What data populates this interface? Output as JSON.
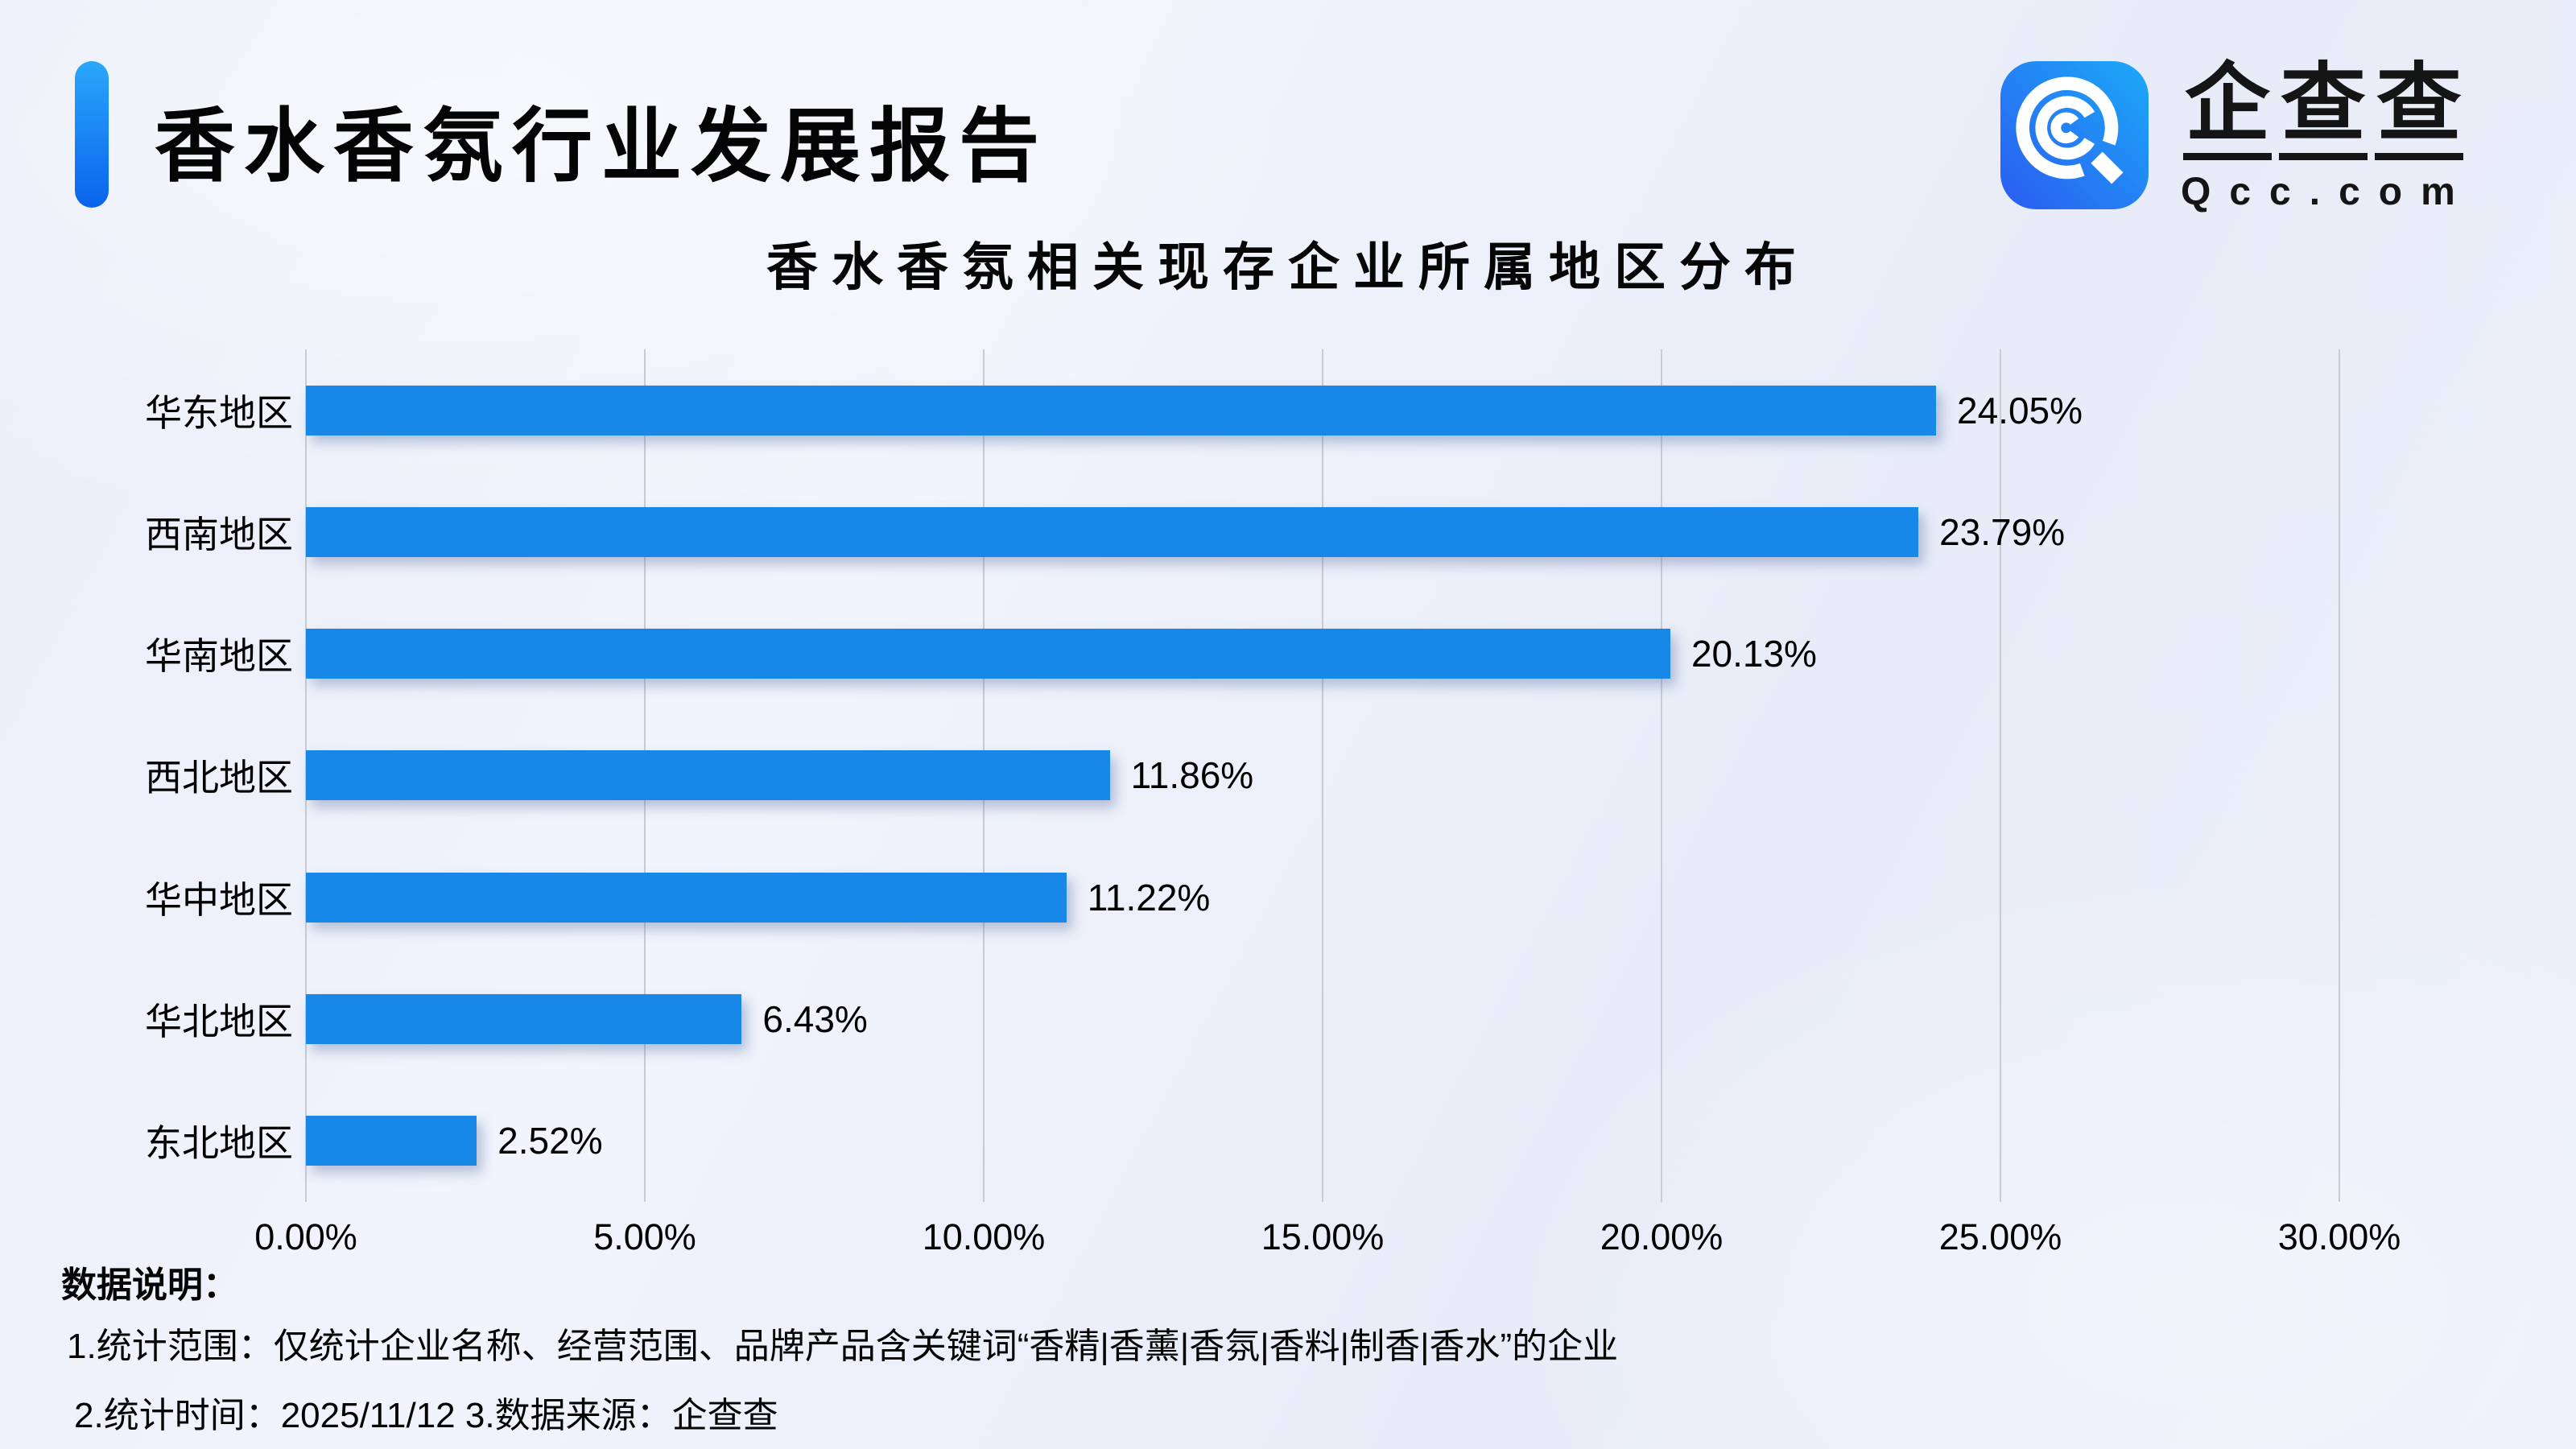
{
  "header": {
    "report_title": "香水香氛行业发展报告",
    "accent_colors": [
      "#2aa7fa",
      "#0a63ed"
    ],
    "logo": {
      "brand_cn": "企查查",
      "brand_domain": "Qcc.com",
      "icon": "qcc-magnifier-icon",
      "icon_gradient": [
        "#2b5cf0",
        "#1caaf8"
      ]
    }
  },
  "chart_data": {
    "type": "bar",
    "orientation": "horizontal",
    "title": "香水香氛相关现存企业所属地区分布",
    "categories": [
      "华东地区",
      "西南地区",
      "华南地区",
      "西北地区",
      "华中地区",
      "华北地区",
      "东北地区"
    ],
    "values": [
      24.05,
      23.79,
      20.13,
      11.86,
      11.22,
      6.43,
      2.52
    ],
    "value_labels": [
      "24.05%",
      "23.79%",
      "20.13%",
      "11.86%",
      "11.22%",
      "6.43%",
      "2.52%"
    ],
    "x_ticks": [
      "0.00%",
      "5.00%",
      "10.00%",
      "15.00%",
      "20.00%",
      "25.00%",
      "30.00%"
    ],
    "xlim": [
      0,
      30
    ],
    "xlabel": "",
    "ylabel": "",
    "grid": true,
    "legend": null,
    "bar_color": "#1787e8",
    "gridline_color": "#c8cbd3"
  },
  "footer": {
    "heading": "数据说明：",
    "note1": "1.统计范围：仅统计企业名称、经营范围、品牌产品含关键词“香精|香薰|香氛|香料|制香|香水”的企业",
    "note2": "2.统计时间：2025/11/12 3.数据来源：企查查"
  }
}
